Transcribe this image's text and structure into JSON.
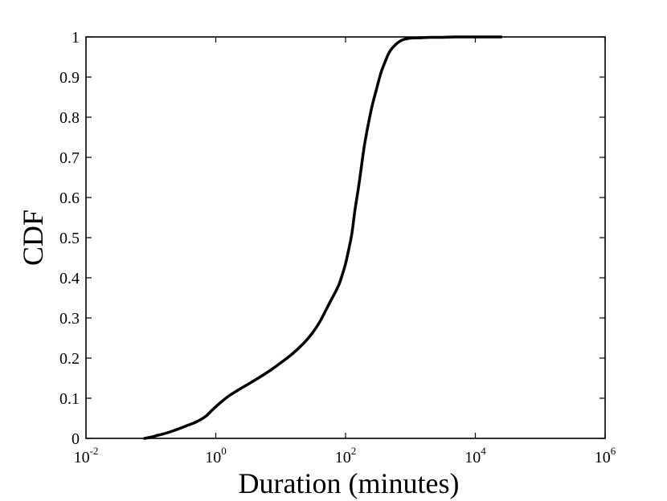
{
  "chart_data": {
    "type": "line",
    "title": "",
    "xlabel": "Duration (minutes)",
    "ylabel": "CDF",
    "xscale": "log",
    "xlim": [
      0.01,
      1000000
    ],
    "ylim": [
      0,
      1
    ],
    "grid": false,
    "legend": "none",
    "line_color": "#000000",
    "x_ticks": [
      {
        "base": "10",
        "exp": "-2",
        "value": 0.01
      },
      {
        "base": "10",
        "exp": "0",
        "value": 1
      },
      {
        "base": "10",
        "exp": "2",
        "value": 100
      },
      {
        "base": "10",
        "exp": "4",
        "value": 10000
      },
      {
        "base": "10",
        "exp": "6",
        "value": 1000000
      }
    ],
    "y_ticks": [
      "0",
      "0.1",
      "0.2",
      "0.3",
      "0.4",
      "0.5",
      "0.6",
      "0.7",
      "0.8",
      "0.9",
      "1"
    ],
    "series": [
      {
        "x": [
          0.08,
          0.1,
          0.13,
          0.18,
          0.25,
          0.35,
          0.5,
          0.7,
          0.9,
          1.2,
          1.6,
          2.2,
          3,
          4.5,
          7,
          10,
          15,
          22,
          30,
          40,
          50,
          60,
          70,
          80,
          90,
          100,
          110,
          125,
          140,
          160,
          180,
          200,
          250,
          300,
          350,
          400,
          450,
          500,
          600,
          700,
          800,
          1000,
          1500,
          2000,
          3000,
          5000,
          10000,
          25000
        ],
        "y": [
          0.0,
          0.003,
          0.008,
          0.014,
          0.022,
          0.031,
          0.041,
          0.055,
          0.072,
          0.09,
          0.106,
          0.12,
          0.133,
          0.15,
          0.17,
          0.188,
          0.21,
          0.235,
          0.26,
          0.29,
          0.32,
          0.345,
          0.365,
          0.385,
          0.41,
          0.435,
          0.465,
          0.51,
          0.57,
          0.63,
          0.69,
          0.74,
          0.82,
          0.87,
          0.91,
          0.935,
          0.955,
          0.968,
          0.982,
          0.99,
          0.994,
          0.997,
          0.998,
          0.999,
          0.999,
          1.0,
          1.0,
          1.0
        ]
      }
    ]
  }
}
